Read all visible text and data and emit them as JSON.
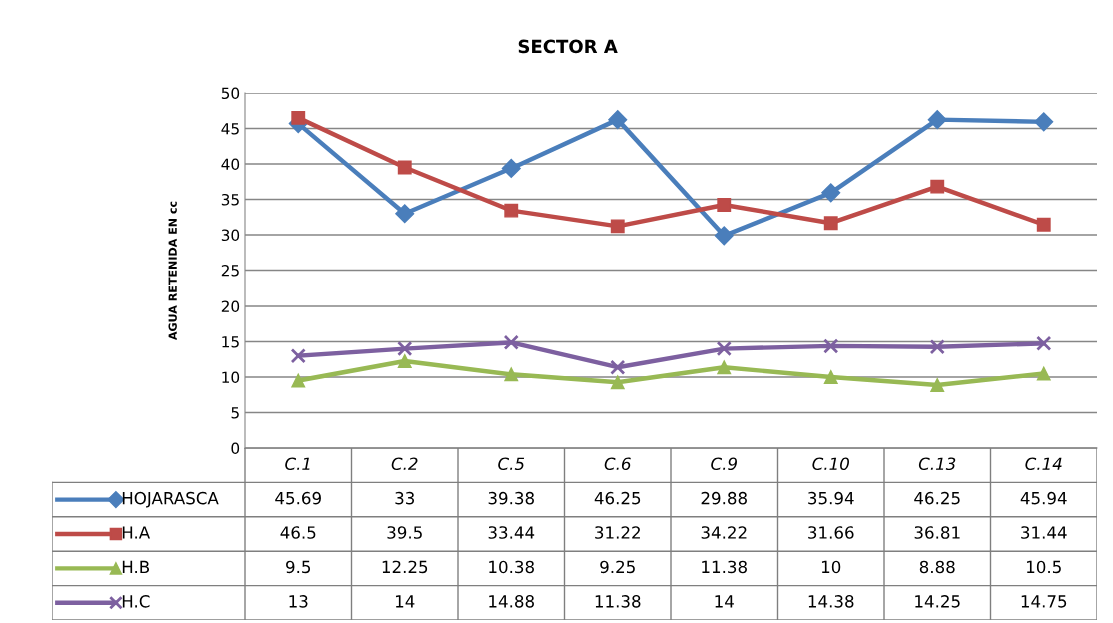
{
  "chart_data": {
    "type": "line",
    "title": "SECTOR A",
    "ylabel": "AGUA RETENIDA EN cc",
    "categories": [
      "C.1",
      "C.2",
      "C.5",
      "C.6",
      "C.9",
      "C.10",
      "C.13",
      "C.14"
    ],
    "series": [
      {
        "name": "HOJARASCA",
        "color": "#4a7ebb",
        "marker": "diamond",
        "values": [
          45.69,
          33,
          39.38,
          46.25,
          29.88,
          35.94,
          46.25,
          45.94
        ]
      },
      {
        "name": "H.A",
        "color": "#be4b48",
        "marker": "square",
        "values": [
          46.5,
          39.5,
          33.44,
          31.22,
          34.22,
          31.66,
          36.81,
          31.44
        ]
      },
      {
        "name": "H.B",
        "color": "#98b954",
        "marker": "triangle",
        "values": [
          9.5,
          12.25,
          10.38,
          9.25,
          11.38,
          10,
          8.88,
          10.5
        ]
      },
      {
        "name": "H.C",
        "color": "#7d60a0",
        "marker": "cross",
        "values": [
          13,
          14,
          14.88,
          11.38,
          14,
          14.38,
          14.25,
          14.75
        ]
      }
    ],
    "ylim": [
      0,
      50
    ],
    "yticks": [
      0,
      5,
      10,
      15,
      20,
      25,
      30,
      35,
      40,
      45,
      50
    ],
    "grid": "y",
    "legend": "bottom",
    "data_labels": true,
    "line_style": "solid"
  }
}
